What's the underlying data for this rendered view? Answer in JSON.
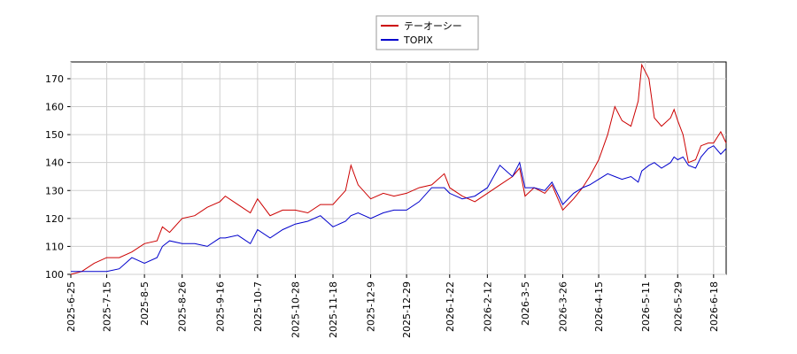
{
  "chart_data": {
    "type": "line",
    "x": [
      "2025-6-25",
      "2025-7-1",
      "2025-7-8",
      "2025-7-15",
      "2025-7-22",
      "2025-7-29",
      "2025-8-5",
      "2025-8-12",
      "2025-8-15",
      "2025-8-19",
      "2025-8-26",
      "2025-9-2",
      "2025-9-9",
      "2025-9-16",
      "2025-9-19",
      "2025-9-26",
      "2025-10-3",
      "2025-10-7",
      "2025-10-14",
      "2025-10-21",
      "2025-10-28",
      "2025-11-4",
      "2025-11-11",
      "2025-11-18",
      "2025-11-25",
      "2025-11-28",
      "2025-12-2",
      "2025-12-9",
      "2025-12-16",
      "2025-12-22",
      "2025-12-29",
      "2026-1-5",
      "2026-1-12",
      "2026-1-19",
      "2026-1-22",
      "2026-1-29",
      "2026-2-5",
      "2026-2-12",
      "2026-2-19",
      "2026-2-26",
      "2026-3-2",
      "2026-3-5",
      "2026-3-10",
      "2026-3-16",
      "2026-3-20",
      "2026-3-26",
      "2026-4-1",
      "2026-4-6",
      "2026-4-10",
      "2026-4-15",
      "2026-4-20",
      "2026-4-24",
      "2026-4-28",
      "2026-5-3",
      "2026-5-7",
      "2026-5-9",
      "2026-5-13",
      "2026-5-16",
      "2026-5-20",
      "2026-5-25",
      "2026-5-27",
      "2026-5-29",
      "2026-6-1",
      "2026-6-4",
      "2026-6-8",
      "2026-6-11",
      "2026-6-15",
      "2026-6-18",
      "2026-6-22",
      "2026-6-25"
    ],
    "series": [
      {
        "name": "テーオーシー",
        "color": "#cc0000",
        "values": [
          100,
          101,
          104,
          106,
          106,
          108,
          111,
          112,
          117,
          115,
          120,
          121,
          124,
          126,
          128,
          125,
          122,
          127,
          121,
          123,
          123,
          122,
          125,
          125,
          130,
          139,
          132,
          127,
          129,
          128,
          129,
          131,
          132,
          136,
          131,
          128,
          126,
          129,
          132,
          135,
          138,
          128,
          131,
          129,
          132,
          123,
          127,
          131,
          135,
          141,
          150,
          160,
          155,
          153,
          162,
          175,
          170,
          156,
          153,
          156,
          159,
          155,
          150,
          140,
          141,
          146,
          147,
          147,
          151,
          147
        ]
      },
      {
        "name": "TOPIX",
        "color": "#0000cc",
        "values": [
          101,
          101,
          101,
          101,
          102,
          106,
          104,
          106,
          110,
          112,
          111,
          111,
          110,
          113,
          113,
          114,
          111,
          116,
          113,
          116,
          118,
          119,
          121,
          117,
          119,
          121,
          122,
          120,
          122,
          123,
          123,
          126,
          131,
          131,
          129,
          127,
          128,
          131,
          139,
          135,
          140,
          131,
          131,
          130,
          133,
          125,
          129,
          131,
          132,
          134,
          136,
          135,
          134,
          135,
          133,
          137,
          139,
          140,
          138,
          140,
          142,
          141,
          142,
          139,
          138,
          142,
          145,
          146,
          143,
          145
        ]
      }
    ],
    "xlim": [
      "2025-6-25",
      "2026-6-25"
    ],
    "xticks": [
      "2025-6-25",
      "2025-7-15",
      "2025-8-5",
      "2025-8-26",
      "2025-9-16",
      "2025-10-7",
      "2025-10-28",
      "2025-11-18",
      "2025-12-9",
      "2025-12-29",
      "2026-1-22",
      "2026-2-12",
      "2026-3-5",
      "2026-3-26",
      "2026-4-15",
      "2026-5-11",
      "2026-5-29",
      "2026-6-18"
    ],
    "ylim": [
      100,
      176
    ],
    "yticks": [
      100,
      110,
      120,
      130,
      140,
      150,
      160,
      170
    ],
    "grid": true,
    "legend": "top"
  }
}
